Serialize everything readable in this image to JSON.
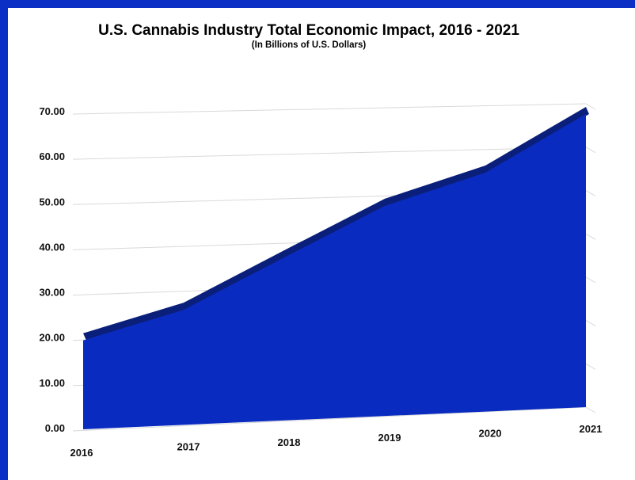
{
  "chart_data": {
    "type": "area",
    "title": "U.S. Cannabis Industry Total Economic Impact, 2016 - 2021",
    "subtitle": "(In Billions of U.S. Dollars)",
    "xlabel": "",
    "ylabel": "",
    "categories": [
      "2016",
      "2017",
      "2018",
      "2019",
      "2020",
      "2021"
    ],
    "series": [
      {
        "values": [
          20.0,
          26.0,
          37.0,
          48.0,
          55.0,
          68.0
        ]
      }
    ],
    "yticks": [
      "0.00",
      "10.00",
      "20.00",
      "30.00",
      "40.00",
      "50.00",
      "60.00",
      "70.00"
    ],
    "ylim": [
      0,
      70
    ],
    "grid": true,
    "legend": "none",
    "colors": {
      "frame": "#0b2fc4",
      "area": "#0a2bbf",
      "area_top": "#0a1f7a",
      "grid": "#d9d9d9",
      "background": "#ffffff"
    }
  }
}
